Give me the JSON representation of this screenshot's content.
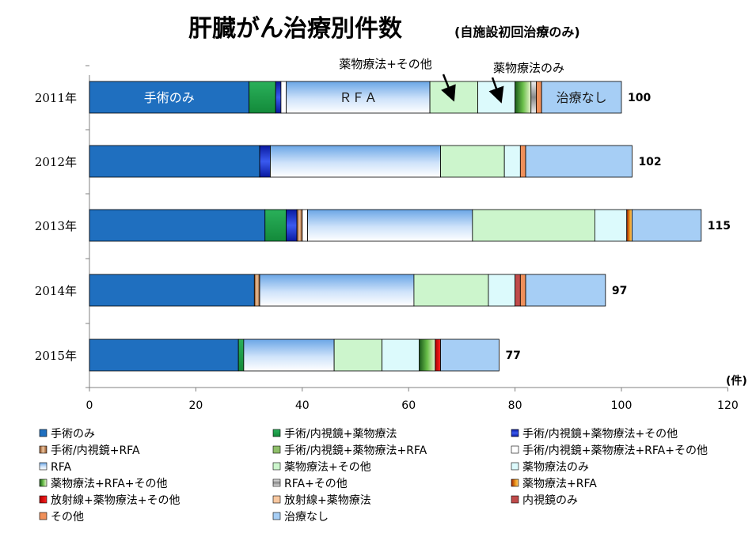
{
  "chart_data": {
    "type": "bar",
    "orientation": "horizontal",
    "stacked": true,
    "title": "肝臓がん治療別件数",
    "subtitle": "(自施設初回治療のみ)",
    "xlabel": "(件)",
    "ylabel": "",
    "xlim": [
      0,
      120
    ],
    "x_ticks": [
      "0",
      "20",
      "40",
      "60",
      "80",
      "100",
      "120"
    ],
    "categories": [
      "2011年",
      "2012年",
      "2013年",
      "2014年",
      "2015年"
    ],
    "totals": [
      "100",
      "102",
      "115",
      "97",
      "77"
    ],
    "legend_position": "bottom",
    "series": [
      {
        "name": "手術のみ",
        "color": "#1f6fbf",
        "values": [
          30,
          32,
          33,
          31,
          28
        ]
      },
      {
        "name": "手術/内視鏡+薬物療法",
        "color": "#1e9a4a",
        "values": [
          5,
          0,
          4,
          0,
          1
        ]
      },
      {
        "name": "手術/内視鏡+薬物療法+その他",
        "color": "#1a2ec8",
        "values": [
          1,
          2,
          2,
          0,
          0
        ]
      },
      {
        "name": "手術/内視鏡+RFA",
        "color": "#c98a5a",
        "values": [
          0,
          0,
          1,
          1,
          0
        ]
      },
      {
        "name": "手術/内視鏡+薬物療法+RFA",
        "color": "#8fbf6a",
        "values": [
          0,
          0,
          0,
          0,
          0
        ]
      },
      {
        "name": "手術/内視鏡+薬物療法+RFA+その他",
        "color": "#ffffff",
        "values": [
          1,
          0,
          1,
          0,
          0
        ]
      },
      {
        "name": "RFA",
        "color": "#8fbfef",
        "values": [
          27,
          32,
          31,
          29,
          17
        ]
      },
      {
        "name": "薬物療法+その他",
        "color": "#ccf5cc",
        "values": [
          9,
          12,
          23,
          14,
          9
        ]
      },
      {
        "name": "薬物療法のみ",
        "color": "#dcfafc",
        "values": [
          7,
          3,
          6,
          5,
          7
        ]
      },
      {
        "name": "薬物療法+RFA+その他",
        "color": "#2e7a2e",
        "values": [
          3,
          0,
          0,
          0,
          3
        ]
      },
      {
        "name": "RFA+その他",
        "color": "#9a9a9a",
        "values": [
          1,
          0,
          0,
          0,
          0
        ]
      },
      {
        "name": "薬物療法+RFA",
        "color": "#e08010",
        "values": [
          0,
          0,
          1,
          0,
          0
        ]
      },
      {
        "name": "放射線+薬物療法+その他",
        "color": "#e01010",
        "values": [
          0,
          0,
          0,
          0,
          1
        ]
      },
      {
        "name": "放射線+薬物療法",
        "color": "#f8c8a0",
        "values": [
          0,
          0,
          0,
          0,
          0
        ]
      },
      {
        "name": "内視鏡のみ",
        "color": "#c04a4a",
        "values": [
          0,
          0,
          0,
          1,
          0
        ]
      },
      {
        "name": "その他",
        "color": "#f0905a",
        "values": [
          1,
          1,
          0,
          1,
          0
        ]
      },
      {
        "name": "治療なし",
        "color": "#a6cef5",
        "values": [
          15,
          20,
          13,
          15,
          11
        ]
      }
    ],
    "segment_labels": [
      {
        "text": "手術のみ",
        "category": 0,
        "series": 0,
        "style": "light"
      },
      {
        "text": "ＲＦＡ",
        "category": 0,
        "series": 6,
        "style": "dark"
      },
      {
        "text": "治療なし",
        "category": 0,
        "series": 16,
        "style": "dark"
      }
    ],
    "annotations": [
      {
        "text": "薬物療法+その他",
        "target_category": 0,
        "target_series": 7
      },
      {
        "text": "薬物療法のみ",
        "target_category": 0,
        "target_series": 8
      }
    ]
  }
}
